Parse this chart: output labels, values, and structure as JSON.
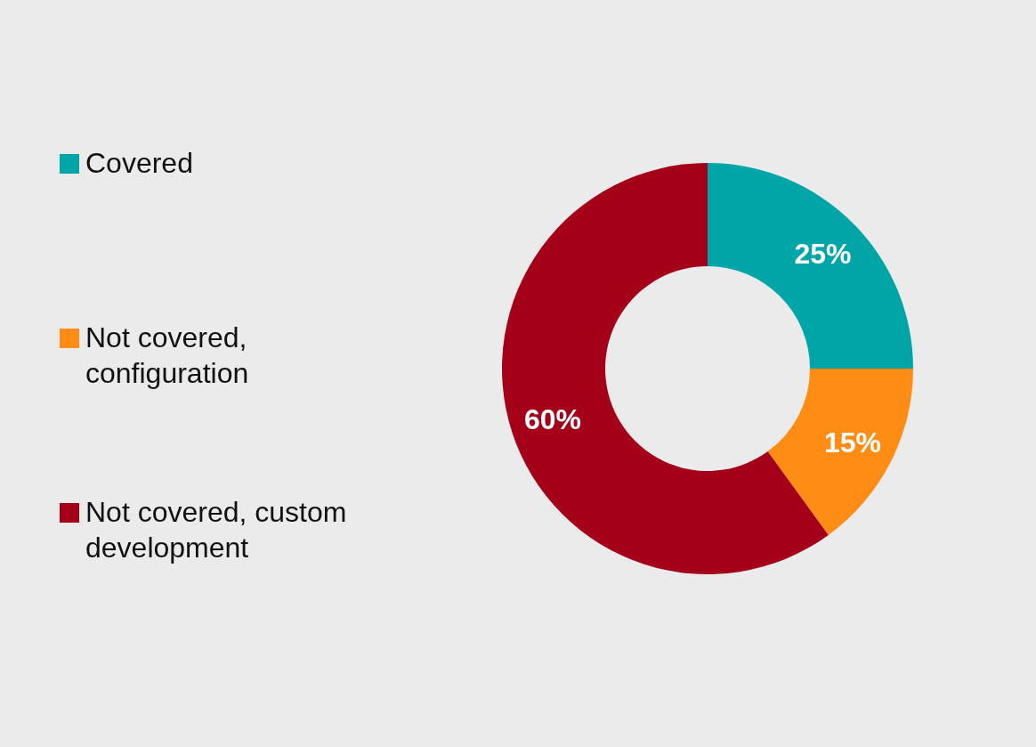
{
  "chart_data": {
    "type": "donut",
    "categories": [
      "Covered",
      "Not covered, configuration",
      "Not covered, custom development"
    ],
    "values": [
      25,
      15,
      60
    ],
    "colors": [
      "#00a5a8",
      "#ff8c14",
      "#a5001a"
    ],
    "value_labels": [
      "25%",
      "15%",
      "60%"
    ],
    "legend": "left"
  }
}
